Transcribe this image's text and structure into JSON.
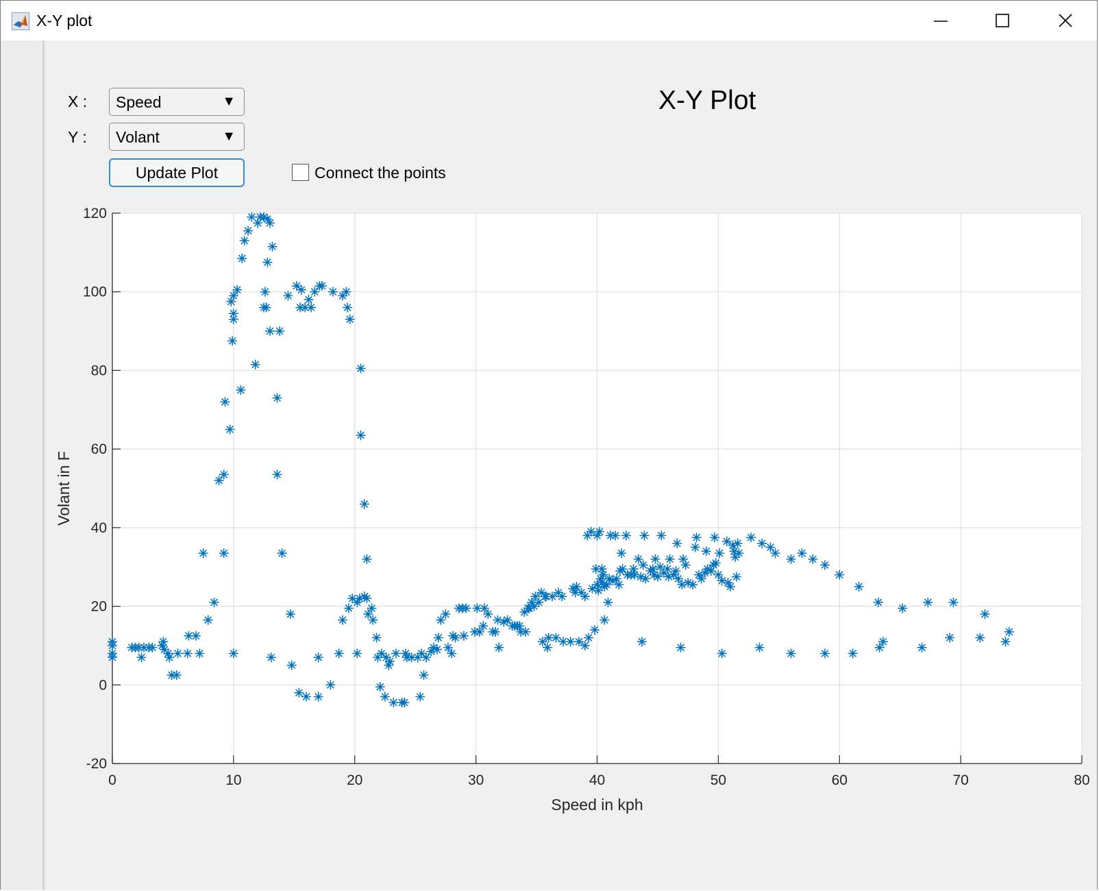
{
  "window": {
    "title": "X-Y plot"
  },
  "controls": {
    "x_label": "X :",
    "y_label": "Y :",
    "x_select_value": "Speed",
    "y_select_value": "Volant",
    "update_button": "Update Plot",
    "connect_label": "Connect the points",
    "connect_checked": false
  },
  "colors": {
    "marker": "#0072BD",
    "grid": "#dcdcdc",
    "axis": "#262626"
  },
  "chart_data": {
    "type": "scatter",
    "title": "X-Y Plot",
    "xlabel": "Speed in kph",
    "ylabel": "Volant in F",
    "xlim": [
      0,
      80
    ],
    "ylim": [
      -20,
      120
    ],
    "xticks": [
      "0",
      "10",
      "20",
      "30",
      "40",
      "50",
      "60",
      "70",
      "80"
    ],
    "yticks": [
      "-20",
      "0",
      "20",
      "40",
      "60",
      "80",
      "100",
      "120"
    ],
    "grid": true,
    "marker": "asterisk",
    "points": [
      [
        0,
        11
      ],
      [
        0,
        10
      ],
      [
        0,
        8
      ],
      [
        0,
        7
      ],
      [
        1.6,
        9.5
      ],
      [
        1.9,
        9.5
      ],
      [
        2.2,
        9.5
      ],
      [
        2.4,
        7
      ],
      [
        2.6,
        9.5
      ],
      [
        3,
        9.5
      ],
      [
        3.3,
        9.5
      ],
      [
        4.1,
        10
      ],
      [
        4.2,
        11
      ],
      [
        4.3,
        9
      ],
      [
        4.6,
        8
      ],
      [
        4.7,
        7
      ],
      [
        4.9,
        2.5
      ],
      [
        5.3,
        2.5
      ],
      [
        5.4,
        8
      ],
      [
        6.2,
        8
      ],
      [
        6.3,
        12.5
      ],
      [
        6.9,
        12.5
      ],
      [
        7.2,
        8
      ],
      [
        7.5,
        33.5
      ],
      [
        7.9,
        16.5
      ],
      [
        8.4,
        21
      ],
      [
        8.8,
        52
      ],
      [
        9.2,
        53.5
      ],
      [
        9.2,
        33.5
      ],
      [
        9.3,
        72
      ],
      [
        9.7,
        65
      ],
      [
        9.8,
        97.5
      ],
      [
        9.9,
        87.5
      ],
      [
        10,
        99
      ],
      [
        10,
        93
      ],
      [
        10,
        94.5
      ],
      [
        10,
        8
      ],
      [
        10.3,
        100.5
      ],
      [
        10.6,
        75
      ],
      [
        10.7,
        108.5
      ],
      [
        10.9,
        113
      ],
      [
        11.2,
        115.5
      ],
      [
        11.5,
        119
      ],
      [
        11.8,
        81.5
      ],
      [
        12,
        117.5
      ],
      [
        12.2,
        119
      ],
      [
        12.5,
        96
      ],
      [
        12.5,
        119
      ],
      [
        12.6,
        100
      ],
      [
        12.7,
        96
      ],
      [
        12.8,
        107.5
      ],
      [
        12.8,
        118.5
      ],
      [
        13,
        117.5
      ],
      [
        13,
        90
      ],
      [
        13.1,
        7
      ],
      [
        13.2,
        111.5
      ],
      [
        13.6,
        73
      ],
      [
        13.6,
        53.5
      ],
      [
        13.8,
        90
      ],
      [
        14,
        33.5
      ],
      [
        14.5,
        99
      ],
      [
        14.7,
        18
      ],
      [
        14.8,
        5
      ],
      [
        15.2,
        101.5
      ],
      [
        15.4,
        -2
      ],
      [
        15.5,
        96
      ],
      [
        15.6,
        100.5
      ],
      [
        15.9,
        96
      ],
      [
        16,
        -3
      ],
      [
        16.2,
        98
      ],
      [
        16.4,
        96
      ],
      [
        16.7,
        100
      ],
      [
        17,
        7
      ],
      [
        17,
        -3
      ],
      [
        17.1,
        101.5
      ],
      [
        17.3,
        101.5
      ],
      [
        18,
        0
      ],
      [
        18.2,
        100
      ],
      [
        18.7,
        8
      ],
      [
        19,
        99
      ],
      [
        19,
        16.5
      ],
      [
        19.3,
        100
      ],
      [
        19.4,
        96
      ],
      [
        19.5,
        19.5
      ],
      [
        19.6,
        93
      ],
      [
        19.8,
        22
      ],
      [
        20.2,
        8
      ],
      [
        20.2,
        21
      ],
      [
        20.4,
        22
      ],
      [
        20.5,
        80.5
      ],
      [
        20.5,
        63.5
      ],
      [
        20.8,
        46
      ],
      [
        20.8,
        22.5
      ],
      [
        21,
        22
      ],
      [
        21,
        32
      ],
      [
        21.1,
        18
      ],
      [
        21.4,
        19.5
      ],
      [
        21.5,
        16.5
      ],
      [
        21.8,
        12
      ],
      [
        21.9,
        7
      ],
      [
        22.1,
        -0.5
      ],
      [
        22.2,
        8
      ],
      [
        22.5,
        -3
      ],
      [
        22.6,
        7
      ],
      [
        22.8,
        5
      ],
      [
        22.9,
        6
      ],
      [
        23.2,
        -4.5
      ],
      [
        23.4,
        8
      ],
      [
        23.9,
        -4.5
      ],
      [
        24.1,
        -4.5
      ],
      [
        24.2,
        8
      ],
      [
        24.3,
        7
      ],
      [
        24.7,
        7
      ],
      [
        25.2,
        7
      ],
      [
        25.4,
        -3
      ],
      [
        25.5,
        8
      ],
      [
        25.7,
        2.5
      ],
      [
        25.9,
        7
      ],
      [
        26.3,
        8.5
      ],
      [
        26.5,
        9.5
      ],
      [
        26.8,
        9
      ],
      [
        26.9,
        12
      ],
      [
        27.1,
        16.5
      ],
      [
        27.5,
        18
      ],
      [
        27.7,
        9.5
      ],
      [
        28,
        8
      ],
      [
        28.1,
        12.5
      ],
      [
        28.3,
        12
      ],
      [
        28.6,
        19.5
      ],
      [
        28.9,
        19.5
      ],
      [
        29,
        12.5
      ],
      [
        29.2,
        19.5
      ],
      [
        29.9,
        13.5
      ],
      [
        30.1,
        19.5
      ],
      [
        30.3,
        13.5
      ],
      [
        30.6,
        15
      ],
      [
        30.7,
        19.5
      ],
      [
        31,
        18
      ],
      [
        31.4,
        13.5
      ],
      [
        31.6,
        13.5
      ],
      [
        31.8,
        16.5
      ],
      [
        31.9,
        9.5
      ],
      [
        32.3,
        16
      ],
      [
        32.6,
        16.5
      ],
      [
        33,
        15
      ],
      [
        33.2,
        15
      ],
      [
        33.4,
        15
      ],
      [
        33.6,
        15
      ],
      [
        33.7,
        13.5
      ],
      [
        34,
        18.5
      ],
      [
        34.1,
        13.5
      ],
      [
        34.3,
        19.5
      ],
      [
        34.4,
        19.5
      ],
      [
        34.6,
        21
      ],
      [
        34.8,
        20
      ],
      [
        34.9,
        22.5
      ],
      [
        35.2,
        21
      ],
      [
        35.4,
        23.5
      ],
      [
        35.5,
        11
      ],
      [
        35.7,
        22.5
      ],
      [
        35.8,
        22.5
      ],
      [
        35.9,
        9.5
      ],
      [
        36,
        12
      ],
      [
        36.3,
        22.5
      ],
      [
        36.6,
        12
      ],
      [
        36.8,
        23.5
      ],
      [
        37.1,
        22.5
      ],
      [
        37.2,
        11
      ],
      [
        37.8,
        11
      ],
      [
        38,
        24.5
      ],
      [
        38.2,
        23.5
      ],
      [
        38.3,
        25
      ],
      [
        38.5,
        11
      ],
      [
        38.7,
        23.5
      ],
      [
        39,
        10
      ],
      [
        39,
        22.5
      ],
      [
        39.2,
        38
      ],
      [
        39.3,
        12
      ],
      [
        39.5,
        39
      ],
      [
        39.6,
        24.5
      ],
      [
        39.8,
        14
      ],
      [
        39.9,
        29.5
      ],
      [
        40,
        38
      ],
      [
        40,
        25.5
      ],
      [
        40.1,
        24
      ],
      [
        40.2,
        39
      ],
      [
        40.3,
        27
      ],
      [
        40.4,
        29.5
      ],
      [
        40.4,
        26
      ],
      [
        40.5,
        28
      ],
      [
        40.6,
        25
      ],
      [
        40.6,
        16.5
      ],
      [
        40.8,
        25.5
      ],
      [
        40.9,
        21
      ],
      [
        41,
        27
      ],
      [
        41.1,
        38
      ],
      [
        41.3,
        26.5
      ],
      [
        41.5,
        38
      ],
      [
        41.6,
        27
      ],
      [
        41.8,
        25.5
      ],
      [
        41.9,
        29
      ],
      [
        42,
        33.5
      ],
      [
        42.1,
        29.5
      ],
      [
        42.4,
        38
      ],
      [
        42.5,
        28
      ],
      [
        42.8,
        28
      ],
      [
        43,
        29.5
      ],
      [
        43.1,
        28
      ],
      [
        43.4,
        32
      ],
      [
        43.6,
        27.5
      ],
      [
        43.7,
        11
      ],
      [
        43.8,
        30.5
      ],
      [
        43.9,
        38
      ],
      [
        44,
        27
      ],
      [
        44.4,
        29
      ],
      [
        44.6,
        29.5
      ],
      [
        44.7,
        28
      ],
      [
        44.8,
        32
      ],
      [
        45,
        27.5
      ],
      [
        45.2,
        30
      ],
      [
        45.3,
        38
      ],
      [
        45.5,
        28.5
      ],
      [
        45.8,
        29.5
      ],
      [
        45.9,
        27.5
      ],
      [
        46,
        32
      ],
      [
        46.3,
        28
      ],
      [
        46.5,
        29
      ],
      [
        46.6,
        36
      ],
      [
        46.7,
        27
      ],
      [
        46.9,
        9.5
      ],
      [
        47,
        25.5
      ],
      [
        47.1,
        32
      ],
      [
        47.3,
        30.5
      ],
      [
        47.5,
        26
      ],
      [
        47.9,
        25.5
      ],
      [
        48.1,
        35
      ],
      [
        48.2,
        37.5
      ],
      [
        48.4,
        28
      ],
      [
        48.6,
        27
      ],
      [
        48.9,
        28.5
      ],
      [
        49,
        34
      ],
      [
        49.1,
        29.5
      ],
      [
        49.4,
        29
      ],
      [
        49.6,
        30.5
      ],
      [
        49.7,
        37.5
      ],
      [
        49.8,
        31
      ],
      [
        50,
        28
      ],
      [
        50.1,
        33.5
      ],
      [
        50.3,
        8
      ],
      [
        50.3,
        26.5
      ],
      [
        50.7,
        36.5
      ],
      [
        50.8,
        26
      ],
      [
        51,
        25
      ],
      [
        51.2,
        35.5
      ],
      [
        51.3,
        34
      ],
      [
        51.4,
        32.5
      ],
      [
        51.5,
        27.5
      ],
      [
        51.6,
        36
      ],
      [
        51.7,
        33.5
      ],
      [
        52.7,
        37.5
      ],
      [
        53.4,
        9.5
      ],
      [
        53.6,
        36
      ],
      [
        54.3,
        35
      ],
      [
        54.7,
        33.5
      ],
      [
        56,
        8
      ],
      [
        56,
        32
      ],
      [
        56.9,
        33.5
      ],
      [
        57.8,
        32
      ],
      [
        58.8,
        8
      ],
      [
        58.8,
        30.5
      ],
      [
        60,
        28
      ],
      [
        61.1,
        8
      ],
      [
        61.6,
        25
      ],
      [
        63.2,
        21
      ],
      [
        63.3,
        9.5
      ],
      [
        63.6,
        11
      ],
      [
        65.2,
        19.5
      ],
      [
        66.8,
        9.5
      ],
      [
        67.3,
        21
      ],
      [
        69.1,
        12
      ],
      [
        69.4,
        21
      ],
      [
        71.6,
        12
      ],
      [
        72,
        18
      ],
      [
        73.7,
        11
      ],
      [
        74,
        13.5
      ]
    ]
  }
}
